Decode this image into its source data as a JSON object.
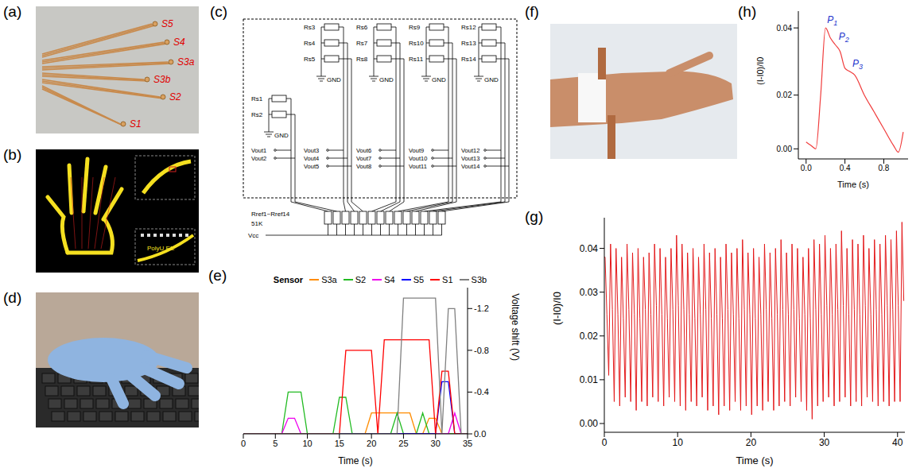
{
  "panels": {
    "a": {
      "letter": "(a)",
      "labels": [
        "S5",
        "S4",
        "S3a",
        "S3b",
        "S2",
        "S1"
      ]
    },
    "b": {
      "letter": "(b)",
      "text": "PolyU EE"
    },
    "c": {
      "letter": "(c)",
      "circuit": {
        "groups": [
          {
            "resistors": [
              "Rs1",
              "Rs2"
            ],
            "outputs": [
              "Vout1",
              "Vout2"
            ],
            "ground": "GND"
          },
          {
            "resistors": [
              "Rs3",
              "Rs4",
              "Rs5"
            ],
            "outputs": [
              "Vout3",
              "Vout4",
              "Vout5"
            ],
            "ground": "GND"
          },
          {
            "resistors": [
              "Rs6",
              "Rs7",
              "Rs8"
            ],
            "outputs": [
              "Vout6",
              "Vout7",
              "Vout8"
            ],
            "ground": "GND"
          },
          {
            "resistors": [
              "Rs9",
              "Rs10",
              "Rs11"
            ],
            "outputs": [
              "Vout9",
              "Vout10",
              "Vout11"
            ],
            "ground": "GND"
          },
          {
            "resistors": [
              "Rs12",
              "Rs13",
              "Rs14"
            ],
            "outputs": [
              "Vout12",
              "Vout13",
              "Vout14"
            ],
            "ground": "GND"
          }
        ],
        "reference": "Rref1~Rref14",
        "reference_value": "51K",
        "supply": "Vcc"
      }
    },
    "d": {
      "letter": "(d)"
    },
    "f": {
      "letter": "(f)"
    }
  },
  "chart_data": [
    {
      "panel": "(e)",
      "type": "line",
      "x_label": "Time (s)",
      "y_label": "Voltage shift (V)",
      "legend_title": "Sensor",
      "legend": "top",
      "x": [
        0,
        1,
        2,
        3,
        4,
        5,
        6,
        7,
        8,
        9,
        10,
        11,
        12,
        13,
        14,
        15,
        16,
        17,
        18,
        19,
        20,
        21,
        22,
        23,
        24,
        25,
        26,
        27,
        28,
        29,
        30,
        31,
        32,
        33,
        34,
        35
      ],
      "xlim": [
        0,
        35
      ],
      "xticks": [
        0,
        5,
        10,
        15,
        20,
        25,
        30,
        35
      ],
      "ylim": [
        -1.4,
        0
      ],
      "yticks": [
        {
          "value": 0,
          "label": "0.0"
        },
        {
          "value": -0.4,
          "label": "-0.4"
        },
        {
          "value": -0.8,
          "label": "-0.8"
        },
        {
          "value": -1.2,
          "label": "-1.2"
        }
      ],
      "series": [
        {
          "name": "S3a",
          "color": "#ff8c00",
          "values": [
            0,
            0,
            0,
            0,
            0,
            0,
            0,
            0,
            0,
            0,
            0,
            0,
            0,
            0,
            0,
            0,
            0,
            0,
            0,
            0,
            -0.2,
            -0.2,
            -0.2,
            -0.2,
            -0.2,
            -0.2,
            -0.2,
            0,
            0,
            -0.15,
            -0.15,
            0,
            0,
            0,
            0,
            0
          ]
        },
        {
          "name": "S2",
          "color": "#22bb22",
          "values": [
            0,
            0,
            0,
            0,
            0,
            0,
            0,
            -0.4,
            -0.4,
            -0.4,
            0,
            0,
            0,
            0,
            0,
            -0.35,
            -0.35,
            0,
            0,
            0,
            0,
            0,
            0,
            0,
            -0.2,
            0,
            0,
            0,
            -0.2,
            0,
            0,
            0,
            0,
            0,
            0,
            0
          ]
        },
        {
          "name": "S4",
          "color": "#ee00ee",
          "values": [
            0,
            0,
            0,
            0,
            0,
            0,
            0,
            -0.15,
            -0.15,
            0,
            0,
            0,
            0,
            0,
            0,
            0,
            0,
            0,
            0,
            0,
            0,
            0,
            0,
            0,
            0,
            0,
            0,
            0,
            0,
            0,
            0,
            0,
            0,
            -0.2,
            0,
            0
          ]
        },
        {
          "name": "S5",
          "color": "#0000ff",
          "values": [
            0,
            0,
            0,
            0,
            0,
            0,
            0,
            0,
            0,
            0,
            0,
            0,
            0,
            0,
            0,
            0,
            0,
            0,
            0,
            0,
            0,
            0,
            0,
            0,
            0,
            0,
            0,
            0,
            0,
            0,
            0,
            -0.5,
            -0.5,
            0,
            0,
            0
          ]
        },
        {
          "name": "S1",
          "color": "#ff0000",
          "values": [
            0,
            0,
            0,
            0,
            0,
            0,
            0,
            0,
            0,
            0,
            0,
            0,
            0,
            0,
            0,
            0,
            -0.8,
            -0.8,
            -0.8,
            -0.8,
            -0.8,
            0,
            -0.9,
            -0.9,
            -0.9,
            -0.9,
            -0.9,
            -0.9,
            -0.9,
            -0.9,
            0,
            -0.6,
            -0.6,
            0,
            0,
            0
          ]
        },
        {
          "name": "S3b",
          "color": "#808080",
          "values": [
            0,
            0,
            0,
            0,
            0,
            0,
            0,
            0,
            0,
            0,
            0,
            0,
            0,
            0,
            0,
            0,
            0,
            0,
            0,
            0,
            0,
            0,
            0,
            0,
            0,
            -1.3,
            -1.3,
            -1.3,
            -1.3,
            -1.3,
            -1.3,
            0,
            -1.2,
            -1.2,
            0,
            0
          ]
        }
      ]
    },
    {
      "panel": "(g)",
      "type": "line",
      "x_label": "Time (s)",
      "y_label": "(I-I0)/I0",
      "color": "#e41a1c",
      "xlim": [
        0,
        41
      ],
      "xticks": [
        0,
        10,
        20,
        30,
        40
      ],
      "ylim": [
        -0.002,
        0.047
      ],
      "yticks": [
        {
          "value": 0,
          "label": "0.00"
        },
        {
          "value": 0.01,
          "label": "0.01"
        },
        {
          "value": 0.02,
          "label": "0.02"
        },
        {
          "value": 0.03,
          "label": "0.03"
        },
        {
          "value": 0.04,
          "label": "0.04"
        }
      ],
      "x": [
        0,
        0.1,
        0.35,
        0.6,
        0.85,
        1.1,
        1.35,
        1.6,
        1.85,
        2.1,
        2.35,
        2.6,
        2.85,
        3.1,
        3.35,
        3.6,
        3.85,
        4.1,
        4.35,
        4.6,
        4.85,
        5.1,
        5.35,
        5.6,
        5.85,
        6.1,
        6.35,
        6.6,
        6.85,
        7.1,
        7.35,
        7.6,
        7.85,
        8.1,
        8.35,
        8.6,
        8.85,
        9.1,
        9.35,
        9.6,
        9.85,
        10.1,
        10.35,
        10.6,
        10.85,
        11.1,
        11.35,
        11.6,
        11.85,
        12.1,
        12.35,
        12.6,
        12.85,
        13.1,
        13.35,
        13.6,
        13.85,
        14.1,
        14.35,
        14.6,
        14.85,
        15.1,
        15.35,
        15.6,
        15.85,
        16.1,
        16.35,
        16.6,
        16.85,
        17.1,
        17.35,
        17.6,
        17.85,
        18.1,
        18.35,
        18.6,
        18.85,
        19.1,
        19.35,
        19.6,
        19.85,
        20.1,
        20.35,
        20.6,
        20.85,
        21.1,
        21.35,
        21.6,
        21.85,
        22.1,
        22.35,
        22.6,
        22.85,
        23.1,
        23.35,
        23.6,
        23.85,
        24.1,
        24.35,
        24.6,
        24.85,
        25.1,
        25.35,
        25.6,
        25.85,
        26.1,
        26.35,
        26.6,
        26.85,
        27.1,
        27.35,
        27.6,
        27.85,
        28.1,
        28.35,
        28.6,
        28.85,
        29.1,
        29.35,
        29.6,
        29.85,
        30.1,
        30.35,
        30.6,
        30.85,
        31.1,
        31.35,
        31.6,
        31.85,
        32.1,
        32.35,
        32.6,
        32.85,
        33.1,
        33.35,
        33.6,
        33.85,
        34.1,
        34.35,
        34.6,
        34.85,
        35.1,
        35.35,
        35.6,
        35.85,
        36.1,
        36.35,
        36.6,
        36.85,
        37.1,
        37.35,
        37.6,
        37.85,
        38.1,
        38.35,
        38.6,
        38.85,
        39.1,
        39.35,
        39.6,
        39.85,
        40.1,
        40.35,
        40.6,
        40.85
      ],
      "values": [
        0.038,
        0.038,
        0.025,
        0.011,
        0.041,
        0.026,
        0.005,
        0.04,
        0.025,
        0.004,
        0.038,
        0.024,
        0.006,
        0.041,
        0.026,
        0.005,
        0.039,
        0.025,
        0.003,
        0.04,
        0.024,
        0.005,
        0.038,
        0.026,
        0.004,
        0.039,
        0.025,
        0.006,
        0.041,
        0.027,
        0.005,
        0.04,
        0.025,
        0.004,
        0.038,
        0.024,
        0.006,
        0.04,
        0.026,
        0.005,
        0.043,
        0.027,
        0.004,
        0.041,
        0.026,
        0.003,
        0.039,
        0.025,
        0.005,
        0.04,
        0.024,
        0.004,
        0.038,
        0.025,
        0.006,
        0.041,
        0.026,
        0.003,
        0.039,
        0.024,
        0.004,
        0.04,
        0.025,
        0.002,
        0.038,
        0.024,
        0.004,
        0.041,
        0.026,
        0.003,
        0.039,
        0.025,
        0.005,
        0.04,
        0.024,
        0.003,
        0.042,
        0.026,
        0.004,
        0.039,
        0.025,
        0.002,
        0.04,
        0.024,
        0.004,
        0.038,
        0.025,
        0.003,
        0.041,
        0.026,
        0.005,
        0.039,
        0.024,
        0.003,
        0.04,
        0.025,
        0.004,
        0.042,
        0.026,
        0.005,
        0.039,
        0.025,
        0.004,
        0.041,
        0.026,
        0.006,
        0.04,
        0.024,
        0.005,
        0.038,
        0.025,
        0.003,
        0.04,
        0.024,
        0.001,
        0.042,
        0.026,
        0.004,
        0.041,
        0.025,
        0.005,
        0.043,
        0.027,
        0.006,
        0.04,
        0.025,
        0.004,
        0.041,
        0.026,
        0.005,
        0.044,
        0.027,
        0.006,
        0.04,
        0.025,
        0.004,
        0.042,
        0.026,
        0.005,
        0.041,
        0.025,
        0.004,
        0.043,
        0.027,
        0.006,
        0.04,
        0.025,
        0.005,
        0.042,
        0.026,
        0.004,
        0.041,
        0.025,
        0.005,
        0.043,
        0.027,
        0.004,
        0.042,
        0.026,
        0.005,
        0.044,
        0.027,
        0.005,
        0.046,
        0.028
      ]
    },
    {
      "panel": "(h)",
      "type": "line",
      "x_label": "Time (s)",
      "y_label": "(I-I0)/I0",
      "color": "#f03c3c",
      "xlim": [
        -0.08,
        1.05
      ],
      "xticks": [
        {
          "value": 0,
          "label": "0.0"
        },
        {
          "value": 0.4,
          "label": "0.4"
        },
        {
          "value": 0.8,
          "label": "0.8"
        }
      ],
      "ylim": [
        0.001,
        0.045
      ],
      "yticks": [
        {
          "value": 0.02,
          "label": "0.02"
        },
        {
          "value": 0.04,
          "label": "0.04"
        },
        {
          "value": 0.004,
          "label": "0.00"
        }
      ],
      "x": [
        0,
        0.05,
        0.1,
        0.15,
        0.2,
        0.25,
        0.3,
        0.35,
        0.4,
        0.45,
        0.5,
        0.6,
        0.7,
        0.8,
        0.9,
        0.95,
        1.0
      ],
      "values": [
        0.006,
        0.005,
        0.004,
        0.02,
        0.04,
        0.037,
        0.035,
        0.033,
        0.028,
        0.027,
        0.026,
        0.02,
        0.015,
        0.01,
        0.005,
        0.003,
        0.009
      ],
      "annotations": [
        {
          "text": "P1",
          "x": 0.2,
          "y": 0.041,
          "color": "#2233cc"
        },
        {
          "text": "P2",
          "x": 0.32,
          "y": 0.036,
          "color": "#2233cc"
        },
        {
          "text": "P3",
          "x": 0.46,
          "y": 0.028,
          "color": "#2233cc"
        }
      ]
    }
  ]
}
